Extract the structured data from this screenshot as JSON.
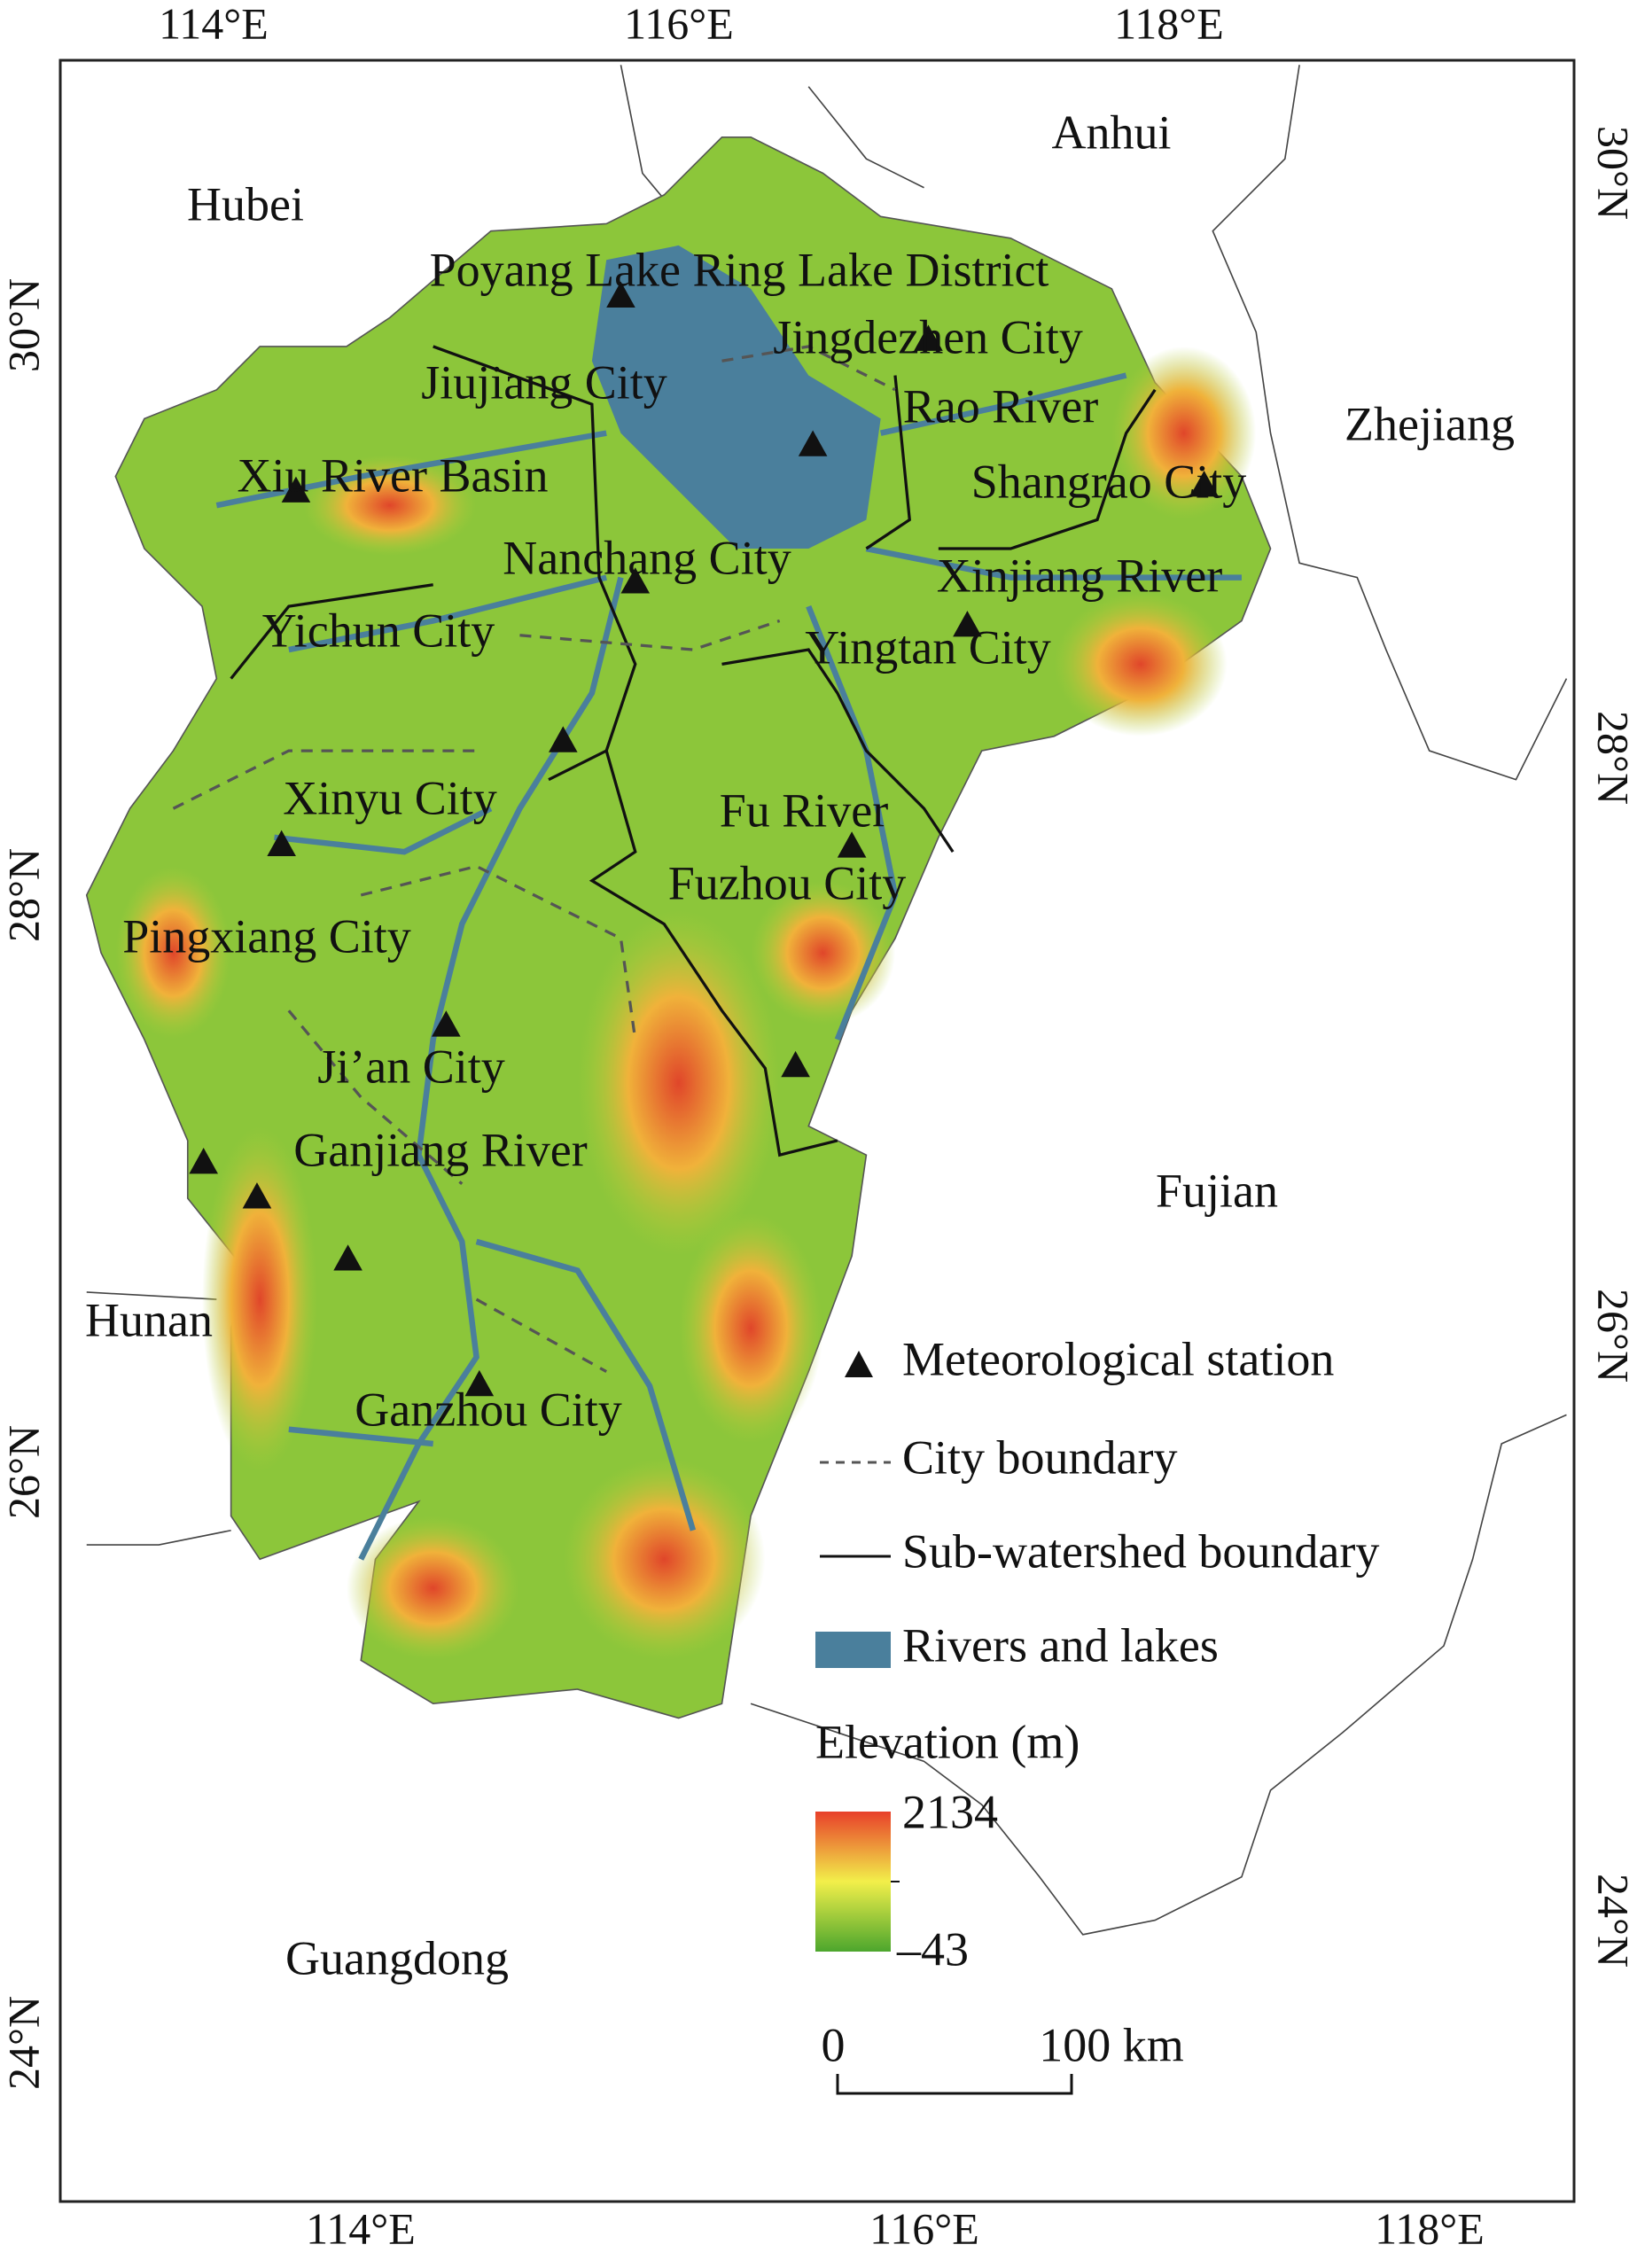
{
  "graticule": {
    "top": [
      "114°E",
      "116°E",
      "118°E"
    ],
    "bottom": [
      "114°E",
      "116°E",
      "118°E"
    ],
    "left": [
      "30°N",
      "28°N",
      "26°N",
      "24°N"
    ],
    "right": [
      "30°N",
      "28°N",
      "26°N",
      "24°N"
    ]
  },
  "regions": [
    "Anhui",
    "Hubei",
    "Zhejiang",
    "Fujian",
    "Hunan",
    "Guangdong"
  ],
  "places": [
    "Poyang Lake Ring Lake District",
    "Jingdezhen City",
    "Jiujiang City",
    "Rao River",
    "Xiu River Basin",
    "Shangrao City",
    "Nanchang City",
    "Xinjiang River",
    "Yichun City",
    "Yingtan City",
    "Xinyu City",
    "Fu River",
    "Fuzhou City",
    "Pingxiang City",
    "Ji’an City",
    "Ganjiang River",
    "Ganzhou City"
  ],
  "legend": {
    "items": [
      "Meteorological station",
      "City boundary",
      "Sub-watershed boundary",
      "Rivers and lakes"
    ],
    "elevation_title": "Elevation (m)",
    "elevation_max": 2134,
    "elevation_min": "–43"
  },
  "scale_bar": {
    "start": "0",
    "end": "100 km"
  }
}
